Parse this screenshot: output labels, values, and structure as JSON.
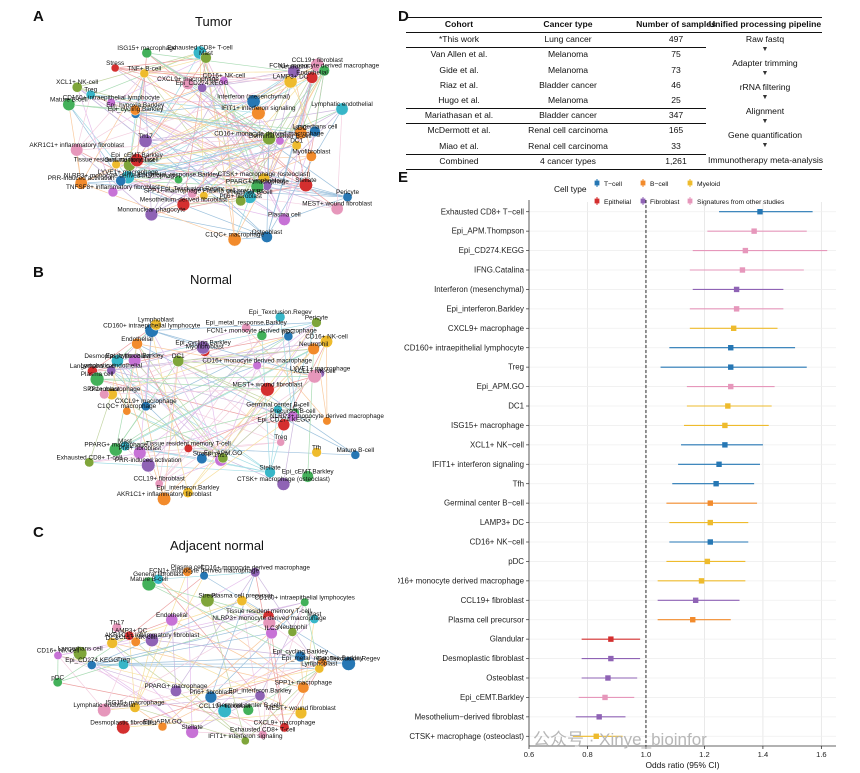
{
  "panels": {
    "a": {
      "letter": "A",
      "title": "Tumor"
    },
    "b": {
      "letter": "B",
      "title": "Normal"
    },
    "c": {
      "letter": "C",
      "title": "Adjacent normal"
    },
    "d": {
      "letter": "D"
    },
    "e": {
      "letter": "E"
    }
  },
  "colors": {
    "T-cell": "#2677b4",
    "B-cell": "#f28b2c",
    "Myeloid": "#eebb2d",
    "Epithelial": "#d42f2f",
    "Fibroblast": "#8f63b5",
    "Signatures": "#e697bb",
    "Extra1": "#43b15a",
    "Extra2": "#37b6c8",
    "Extra3": "#c772d6",
    "Extra4": "#7fa53a"
  },
  "network_a": {
    "labels": [
      "Pericyte",
      "Myofibroblast",
      "CTSK+ macrophage (osteoclast)",
      "Stellate",
      "Lymphoblast",
      "MEST+ wound fibroblast",
      "PPARG+ macrophage",
      "Precursor B-cell",
      "Plasma cell",
      "Pfi6+ fibroblast",
      "Osteoblast",
      "C1QC+ macrophage",
      "SPP1+ macrophage Plasma cell precursor",
      "Mesothelium-derived fibroblast",
      "Mononuclear phagocyte",
      "Epi_Texclusion.Regev",
      "Epi_metal_response.Barkley",
      "LYVE1+ macrophage",
      "TNFSF8+ inflammatory fibroblast",
      "General fibroblast",
      "NLRP3+ monocyte derived macrophage",
      "PRR-induced activation",
      "Tissue resident memory T-cell",
      "Epi_cEMT.Barkley",
      "Th17",
      "AKR1C1+ inflammatory fibroblast",
      "Mature B-cell",
      "Treg",
      "CD160+ intraepithelial lymphocyte",
      "XCL1+ NK-cell",
      "Epi_cycling.Barkley",
      "Epi_hypoxia.Barkley",
      "TNF+ B-cell",
      "Stress",
      "Epi_CD274.KEGG",
      "CXCL9+ macrophage",
      "ISG15+ macrophage",
      "Exhausted CD8+ T-cell",
      "CD16+ NK-cell",
      "Mast",
      "Interferon (mesenchymal)",
      "IFIT1+ interferon signaling",
      "LAMP3+ DC",
      "Endothelial",
      "Neutrophil",
      "CCL19+ fibroblast",
      "FCN1+ monocyte derived macrophage",
      "Lymphatic endothelial",
      "Germinal center B-cell",
      "CD16+ monocyte derived macrophage",
      "Langerhans cell",
      "pDC",
      "DC1"
    ]
  },
  "network_b": {
    "labels": [
      "Mature B-cell",
      "NLRP3+ monocyte derived macrophage",
      "Tfh",
      "Epi_CD274.KEGG",
      "CTSK+ macrophage (osteoclast)",
      "Treg",
      "Epi_cEMT.Barkley",
      "Stellate",
      "Th17",
      "Epi_APM.GO",
      "Stress",
      "AKR1C1+ inflammatory fibroblast",
      "Epi_interferon.Barkley",
      "Tissue resident memory T-cell",
      "PRR-induced activation",
      "CCL19+ fibroblast",
      "PPARG+ macrophage",
      "Mast",
      "Pfi6+ fibroblast",
      "Exhausted CD8+ T-cell",
      "CXCL9+ macrophage",
      "C1QC+ macrophage",
      "SPP1+ macrophage",
      "Langerhans cell",
      "Lymphatic endothelial",
      "Osteoblast",
      "Plasma cell",
      "Desmoplastic fibroblast",
      "Epi_hypoxia.Barkley",
      "DC1",
      "CD160+ intraepithelial lymphocyte",
      "Endothelial",
      "Lymphoblast",
      "Myofibroblast",
      "Epi_cycling.Barkley",
      "Epi_metal_response.Barkley",
      "FCN1+ monocyte derived macrophage",
      "Epi_Texclusion.Regev",
      "CD16+ monocyte derived macrophage",
      "Pericyte",
      "pDC",
      "Neutrophil",
      "CD16+ NK-cell",
      "MEST+ wound fibroblast",
      "LYVE1+ macrophage",
      "XCL1+ NK-cell",
      "LC3",
      "Germinal center B-cell",
      "Precursor B-cell"
    ]
  },
  "network_c": {
    "labels": [
      "Epi_Texclusion.Regev",
      "SPP1+ macrophage",
      "MEST+ wound fibroblast",
      "CXCL9+ macrophage",
      "Epi_interferon.Barkley",
      "Exhausted CD8+ T-cell",
      "Germinal center B-cell",
      "CCL19+ fibroblast",
      "Stellate",
      "IFIT1+ interferon signaling",
      "Pfi6+ fibroblast",
      "Epi_APM.GO",
      "ISG15+ macrophage",
      "Desmoplastic fibroblast",
      "PPARG+ macrophage",
      "Lymphatic endothelial",
      "pDC",
      "Treg",
      "CD16+ NK-cell",
      "Langerhans cell",
      "Epi_CD274.KEGG",
      "XCL1+ NK-cell",
      "DC1",
      "LAMP3+ DC",
      "AKR1C1+ inflammatory fibroblast",
      "Th17",
      "Mature B-cell",
      "General fibroblast",
      "Endothelial",
      "Stress",
      "FCN1+ monocyte derived macrophage",
      "Plasma cell",
      "Plasma cell precursor",
      "Tissue resident memory T-cell",
      "CD16+ monocyte derived macrophage",
      "NLRP3+ monocyte derived macrophage",
      "CD160+ intraepithelial lymphocytes",
      "Mast",
      "ILC3",
      "Neutrophil",
      "Epi_cycling.Barkley",
      "Epi_metal_response.Barkley",
      "Lymphoblast"
    ]
  },
  "table": {
    "headers": [
      "Cohort",
      "Cancer type",
      "Number of samples",
      "Unified processing pipeline"
    ],
    "rows": [
      {
        "cohort": "*This work",
        "type": "Lung cancer",
        "n": "497"
      },
      {
        "cohort": "Van Allen et al.",
        "type": "Melanoma",
        "n": "75"
      },
      {
        "cohort": "Gide et al.",
        "type": "Melanoma",
        "n": "73"
      },
      {
        "cohort": "Riaz et al.",
        "type": "Bladder cancer",
        "n": "46"
      },
      {
        "cohort": "Hugo et al.",
        "type": "Melanoma",
        "n": "25"
      },
      {
        "cohort": "Mariathasan et al.",
        "type": "Bladder cancer",
        "n": "347"
      },
      {
        "cohort": "McDermott et al.",
        "type": "Renal cell carcinoma",
        "n": "165"
      },
      {
        "cohort": "Miao et al.",
        "type": "Renal cell carcinoma",
        "n": "33"
      }
    ],
    "combined": {
      "cohort": "Combined",
      "type": "4 cancer types",
      "n": "1,261"
    },
    "pipeline": [
      "Raw fastq",
      "Adapter trimming",
      "rRNA filtering",
      "Alignment",
      "Gene quantification",
      "Immunotherapy meta-analysis"
    ]
  },
  "chart_data": {
    "type": "forest",
    "title": "",
    "xlabel": "Odds ratio (95% CI)",
    "xlim": [
      0.6,
      1.65
    ],
    "xticks": [
      0.6,
      0.8,
      1.0,
      1.2,
      1.4,
      1.6
    ],
    "xtick_labels": [
      "0.6",
      "0.8",
      "1.0",
      "1.2",
      "1.4",
      "1.6"
    ],
    "reference_line": 1.0,
    "legend_title": "Cell type",
    "legend": [
      {
        "name": "T−cell",
        "group": "T-cell"
      },
      {
        "name": "B−cell",
        "group": "B-cell"
      },
      {
        "name": "Myeloid",
        "group": "Myeloid"
      },
      {
        "name": "Epithelial",
        "group": "Epithelial"
      },
      {
        "name": "Fibroblast",
        "group": "Fibroblast"
      },
      {
        "name": "Signatures from other studies",
        "group": "Signatures"
      }
    ],
    "rows": [
      {
        "label": "Exhausted CD8+ T−cell",
        "or": 1.39,
        "lo": 1.25,
        "hi": 1.57,
        "group": "T-cell"
      },
      {
        "label": "Epi_APM.Thompson",
        "or": 1.37,
        "lo": 1.21,
        "hi": 1.55,
        "group": "Signatures"
      },
      {
        "label": "Epi_CD274.KEGG",
        "or": 1.34,
        "lo": 1.16,
        "hi": 1.62,
        "group": "Signatures"
      },
      {
        "label": "IFNG.Catalina",
        "or": 1.33,
        "lo": 1.15,
        "hi": 1.54,
        "group": "Signatures"
      },
      {
        "label": "Interferon (mesenchymal)",
        "or": 1.31,
        "lo": 1.16,
        "hi": 1.47,
        "group": "Fibroblast"
      },
      {
        "label": "Epi_interferon.Barkley",
        "or": 1.31,
        "lo": 1.15,
        "hi": 1.47,
        "group": "Signatures"
      },
      {
        "label": "CXCL9+ macrophage",
        "or": 1.3,
        "lo": 1.15,
        "hi": 1.45,
        "group": "Myeloid"
      },
      {
        "label": "CD160+ intraepithelial lymphocyte",
        "or": 1.29,
        "lo": 1.08,
        "hi": 1.51,
        "group": "T-cell"
      },
      {
        "label": "Treg",
        "or": 1.29,
        "lo": 1.05,
        "hi": 1.55,
        "group": "T-cell"
      },
      {
        "label": "Epi_APM.GO",
        "or": 1.29,
        "lo": 1.14,
        "hi": 1.44,
        "group": "Signatures"
      },
      {
        "label": "DC1",
        "or": 1.28,
        "lo": 1.14,
        "hi": 1.43,
        "group": "Myeloid"
      },
      {
        "label": "ISG15+ macrophage",
        "or": 1.27,
        "lo": 1.13,
        "hi": 1.42,
        "group": "Myeloid"
      },
      {
        "label": "XCL1+ NK−cell",
        "or": 1.27,
        "lo": 1.12,
        "hi": 1.4,
        "group": "T-cell"
      },
      {
        "label": "IFIT1+ interferon signaling",
        "or": 1.25,
        "lo": 1.11,
        "hi": 1.39,
        "group": "T-cell"
      },
      {
        "label": "Tfh",
        "or": 1.24,
        "lo": 1.09,
        "hi": 1.37,
        "group": "T-cell"
      },
      {
        "label": "Germinal center B−cell",
        "or": 1.22,
        "lo": 1.07,
        "hi": 1.38,
        "group": "B-cell"
      },
      {
        "label": "LAMP3+ DC",
        "or": 1.22,
        "lo": 1.08,
        "hi": 1.35,
        "group": "Myeloid"
      },
      {
        "label": "CD16+ NK−cell",
        "or": 1.22,
        "lo": 1.08,
        "hi": 1.35,
        "group": "T-cell"
      },
      {
        "label": "pDC",
        "or": 1.21,
        "lo": 1.07,
        "hi": 1.34,
        "group": "Myeloid"
      },
      {
        "label": "CD16+ monocyte derived macrophage",
        "or": 1.19,
        "lo": 1.04,
        "hi": 1.34,
        "group": "Myeloid"
      },
      {
        "label": "CCL19+ fibroblast",
        "or": 1.17,
        "lo": 1.04,
        "hi": 1.32,
        "group": "Fibroblast"
      },
      {
        "label": "Plasma cell precursor",
        "or": 1.16,
        "lo": 1.04,
        "hi": 1.29,
        "group": "B-cell"
      },
      {
        "label": "Glandular",
        "or": 0.88,
        "lo": 0.78,
        "hi": 0.98,
        "group": "Epithelial"
      },
      {
        "label": "Desmoplastic fibroblast",
        "or": 0.88,
        "lo": 0.78,
        "hi": 0.98,
        "group": "Fibroblast"
      },
      {
        "label": "Osteoblast",
        "or": 0.87,
        "lo": 0.78,
        "hi": 0.97,
        "group": "Fibroblast"
      },
      {
        "label": "Epi_cEMT.Barkley",
        "or": 0.86,
        "lo": 0.77,
        "hi": 0.96,
        "group": "Signatures"
      },
      {
        "label": "Mesothelium−derived fibroblast",
        "or": 0.84,
        "lo": 0.76,
        "hi": 0.93,
        "group": "Fibroblast"
      },
      {
        "label": "CTSK+ macrophage (osteoclast)",
        "or": 0.83,
        "lo": 0.75,
        "hi": 0.92,
        "group": "Myeloid"
      }
    ]
  },
  "watermark": "公众号 · Xinye_bioinfor"
}
